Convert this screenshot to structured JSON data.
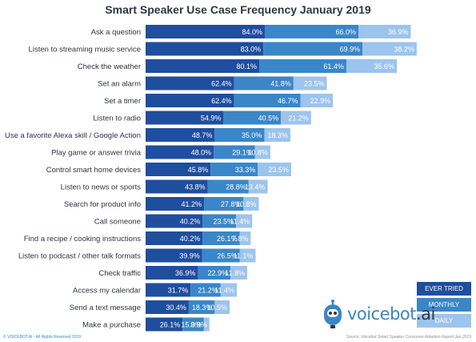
{
  "chart_data": {
    "type": "bar",
    "title": "Smart Speaker Use Case Frequency January 2019",
    "categories": [
      "Ask a question",
      "Listen to streaming music service",
      "Check the weather",
      "Set an alarm",
      "Set a timer",
      "Listen to radio",
      "Use a favorite Alexa skill / Google Action",
      "Play game or answer trivia",
      "Control smart home devices",
      "Listen to news or sports",
      "Search for product info",
      "Call someone",
      "Find a recipe / cooking instructions",
      "Listen to podcast / other talk formats",
      "Check traffic",
      "Access my calendar",
      "Send a text message",
      "Make a purchase"
    ],
    "series": [
      {
        "name": "EVER TRIED",
        "color": "#1f4e9e",
        "values": [
          84.0,
          83.0,
          80.1,
          62.4,
          62.4,
          54.9,
          48.7,
          48.0,
          45.8,
          43.8,
          41.2,
          40.2,
          40.2,
          39.9,
          36.9,
          31.7,
          30.4,
          26.1
        ]
      },
      {
        "name": "MONTHLY",
        "color": "#3a86c8",
        "values": [
          66.0,
          69.9,
          61.4,
          41.8,
          46.7,
          40.5,
          35.0,
          29.1,
          33.3,
          28.8,
          27.8,
          23.5,
          26.1,
          26.5,
          22.9,
          21.2,
          18.3,
          15.0
        ]
      },
      {
        "name": "DAILY",
        "color": "#9cc4ec",
        "values": [
          36.9,
          38.2,
          35.6,
          23.5,
          22.9,
          21.2,
          18.3,
          10.8,
          23.5,
          13.4,
          10.8,
          11.4,
          7.8,
          11.1,
          11.8,
          11.4,
          10.5,
          3.9
        ]
      }
    ],
    "value_suffix": "%",
    "legend_position": "bottom-right",
    "stacked": true,
    "grid": false
  },
  "brand": {
    "name_main": "voicebot",
    "name_suffix": ".ai",
    "logo_icon": "microphone-robot-icon",
    "accent_color": "#3a86c8"
  },
  "footer": {
    "source": "Source: Voicebot Smart Speaker Consumer Adoption Report Jan 2019",
    "copyright": "© VOICEBOT.AI - All Rights Reserved 2019"
  }
}
